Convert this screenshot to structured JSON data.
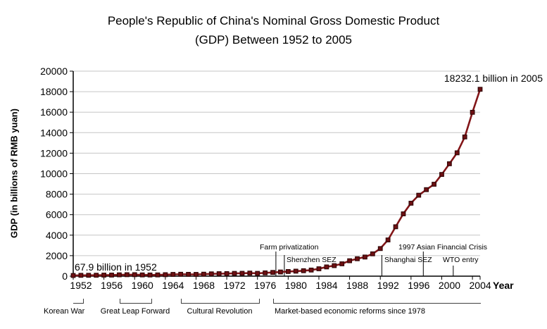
{
  "title": {
    "line1": "People's Republic of China's Nominal Gross Domestic Product",
    "line2": "(GDP) Between 1952 to 2005"
  },
  "axes": {
    "y_label": "GDP (in billions of RMB yuan)",
    "x_label": "Year"
  },
  "annotations": {
    "start_value": "67.9 billion in 1952",
    "end_value": "18232.1 billion in 2005"
  },
  "timeline": {
    "korean_war": "Korean War",
    "great_leap_forward": "Great Leap Forward",
    "cultural_revolution": "Cultural Revolution",
    "market_reforms": "Market-based economic reforms since 1978"
  },
  "colors": {
    "series_line": "#821518",
    "marker_fill": "#6F1013",
    "marker_edge": "#330708",
    "gridline": "#C6C6C6",
    "axis": "#000000",
    "text": "#000000",
    "background": "#FFFFFF"
  },
  "chart_data": {
    "type": "line",
    "title": "People's Republic of China's Nominal Gross Domestic Product (GDP) Between 1952 to 2005",
    "xlabel": "Year",
    "ylabel": "GDP (in billions of RMB yuan)",
    "xlim": [
      1952,
      2005
    ],
    "ylim": [
      0,
      20000
    ],
    "x_ticks": [
      1952,
      1956,
      1960,
      1964,
      1968,
      1972,
      1976,
      1980,
      1984,
      1988,
      1992,
      1996,
      2000,
      2004
    ],
    "y_ticks": [
      0,
      2000,
      4000,
      6000,
      8000,
      10000,
      12000,
      14000,
      16000,
      18000,
      20000
    ],
    "grid": true,
    "legend": "none",
    "marker": "square",
    "x": [
      1952,
      1953,
      1954,
      1955,
      1956,
      1957,
      1958,
      1959,
      1960,
      1961,
      1962,
      1963,
      1964,
      1965,
      1966,
      1967,
      1968,
      1969,
      1970,
      1971,
      1972,
      1973,
      1974,
      1975,
      1976,
      1977,
      1978,
      1979,
      1980,
      1981,
      1982,
      1983,
      1984,
      1985,
      1986,
      1987,
      1988,
      1989,
      1990,
      1991,
      1992,
      1993,
      1994,
      1995,
      1996,
      1997,
      1998,
      1999,
      2000,
      2001,
      2002,
      2003,
      2004,
      2005
    ],
    "values": [
      67.9,
      82.4,
      85.9,
      91.0,
      102.8,
      106.8,
      130.7,
      143.9,
      145.7,
      122.0,
      114.9,
      123.3,
      145.4,
      171.6,
      186.8,
      177.4,
      172.3,
      193.8,
      225.3,
      242.6,
      251.8,
      272.1,
      279.0,
      299.7,
      274.4,
      320.2,
      364.5,
      406.3,
      454.6,
      489.2,
      532.3,
      596.3,
      720.8,
      901.6,
      1027.5,
      1205.9,
      1504.3,
      1699.2,
      1866.8,
      2178.1,
      2692.4,
      3533.4,
      4819.8,
      6079.4,
      7117.7,
      7897.3,
      8440.2,
      8967.7,
      9921.5,
      10965.5,
      12033.3,
      13582.3,
      15987.8,
      18232.1
    ],
    "events": [
      {
        "name": "farm-privatization",
        "label": "Farm privatization",
        "year": 1978.4
      },
      {
        "name": "shenzhen-sez",
        "label": "Shenzhen SEZ",
        "year": 1979.5
      },
      {
        "name": "shanghai-sez",
        "label": "Shanghai SEZ",
        "year": 1992.2
      },
      {
        "name": "asian-financial-crisis",
        "label": "1997 Asian Financial Crisis",
        "year": 1997.6
      },
      {
        "name": "wto-entry",
        "label": "WTO entry",
        "year": 2001.5
      }
    ]
  }
}
